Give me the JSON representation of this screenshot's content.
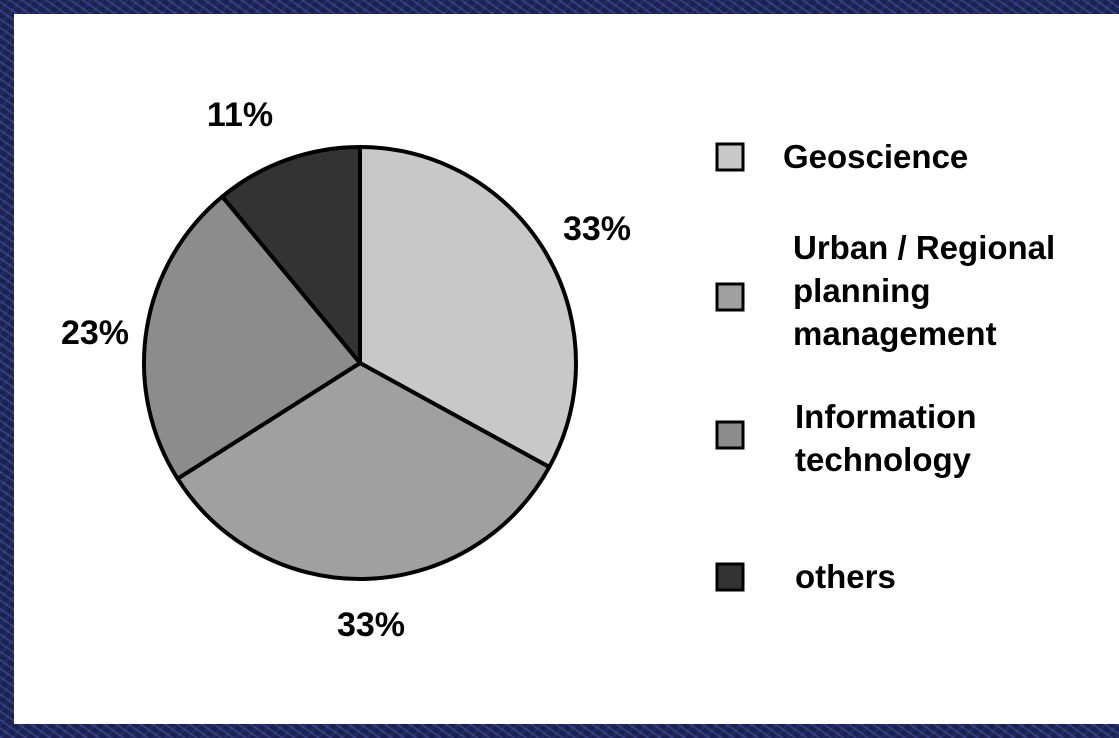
{
  "chart_data": {
    "type": "pie",
    "series": [
      {
        "name": "Geoscience",
        "value": 33,
        "label": "33%",
        "color": "#c8c8c8"
      },
      {
        "name": "Urban / Regional planning management",
        "value": 33,
        "label": "33%",
        "color": "#a0a0a0"
      },
      {
        "name": "Information technology",
        "value": 23,
        "label": "23%",
        "color": "#8c8c8c"
      },
      {
        "name": "others",
        "value": 11,
        "label": "11%",
        "color": "#333333"
      }
    ],
    "legend": {
      "placement": "right",
      "entries": [
        {
          "lines": [
            "Geoscience"
          ],
          "color": "#c8c8c8"
        },
        {
          "lines": [
            "Urban / Regional",
            "planning",
            "management"
          ],
          "color": "#a0a0a0"
        },
        {
          "lines": [
            "Information",
            "technology"
          ],
          "color": "#8c8c8c"
        },
        {
          "lines": [
            "others"
          ],
          "color": "#333333"
        }
      ]
    }
  }
}
